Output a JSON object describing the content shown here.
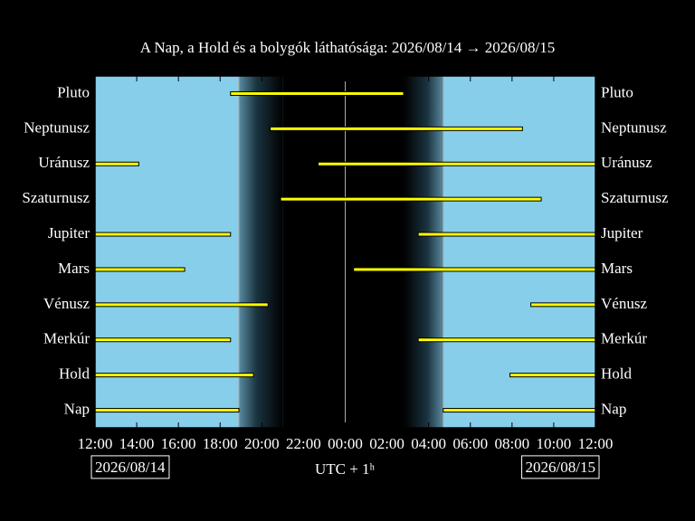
{
  "chart_data": {
    "type": "range",
    "title": "A Nap, a Hold és a bolygók láthatósága: 2026/08/14 → 2026/08/15",
    "x_label": "UTC + 1ʰ",
    "start_date": "2026/08/14",
    "end_date": "2026/08/15",
    "xlim": [
      0,
      24
    ],
    "xticks": [
      {
        "value": 0,
        "label": "12:00"
      },
      {
        "value": 2,
        "label": "14:00"
      },
      {
        "value": 4,
        "label": "16:00"
      },
      {
        "value": 6,
        "label": "18:00"
      },
      {
        "value": 8,
        "label": "20:00"
      },
      {
        "value": 10,
        "label": "22:00"
      },
      {
        "value": 12,
        "label": "00:00"
      },
      {
        "value": 14,
        "label": "02:00"
      },
      {
        "value": 16,
        "label": "04:00"
      },
      {
        "value": 18,
        "label": "06:00"
      },
      {
        "value": 20,
        "label": "08:00"
      },
      {
        "value": 22,
        "label": "10:00"
      },
      {
        "value": 24,
        "label": "12:00"
      }
    ],
    "night": [
      6.9,
      9.0,
      14.8,
      16.7
    ],
    "bar_color": "#ffff00",
    "sky_color": "#87ceeb",
    "series": [
      {
        "name": "Pluto",
        "ranges": [
          [
            6.5,
            14.8
          ]
        ]
      },
      {
        "name": "Neptunusz",
        "ranges": [
          [
            8.4,
            20.5
          ]
        ]
      },
      {
        "name": "Uránusz",
        "ranges": [
          [
            0,
            2.1
          ],
          [
            10.7,
            24
          ]
        ]
      },
      {
        "name": "Szaturnusz",
        "ranges": [
          [
            8.9,
            21.4
          ]
        ]
      },
      {
        "name": "Jupiter",
        "ranges": [
          [
            0,
            6.5
          ],
          [
            15.5,
            24
          ]
        ]
      },
      {
        "name": "Mars",
        "ranges": [
          [
            0,
            4.3
          ],
          [
            12.4,
            24
          ]
        ]
      },
      {
        "name": "Vénusz",
        "ranges": [
          [
            0,
            8.3
          ],
          [
            20.9,
            24
          ]
        ]
      },
      {
        "name": "Merkúr",
        "ranges": [
          [
            0,
            6.5
          ],
          [
            15.5,
            24
          ]
        ]
      },
      {
        "name": "Hold",
        "ranges": [
          [
            0,
            7.6
          ],
          [
            19.9,
            24
          ]
        ]
      },
      {
        "name": "Nap",
        "ranges": [
          [
            0,
            6.9
          ],
          [
            16.7,
            24
          ]
        ]
      }
    ]
  }
}
